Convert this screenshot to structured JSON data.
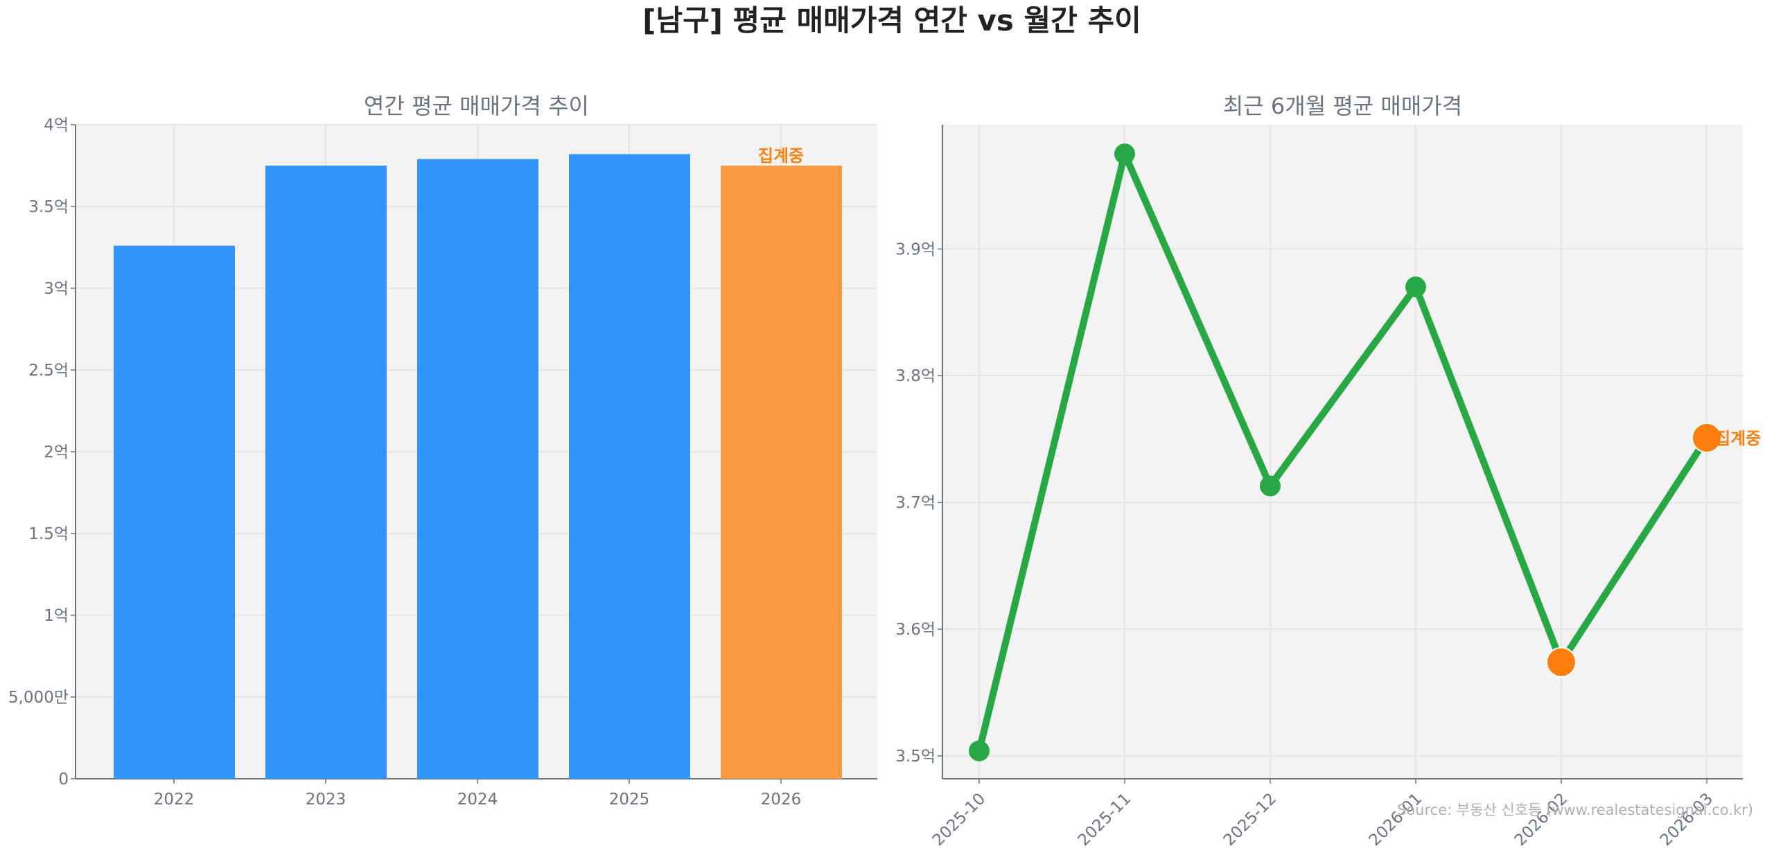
{
  "title": "[남구] 평균 매매가격 연간 vs 월간 추이",
  "source": "Source: 부동산 신호등 (www.realestatesignal.co.kr)",
  "colors": {
    "bar": "#3094fa",
    "bar_partial": "#f99a40",
    "line": "#28a745",
    "partial_marker": "#ff7f0e",
    "plot_bg": "#f3f3f3"
  },
  "chart_data": [
    {
      "type": "bar",
      "title": "연간 평균 매매가격 추이",
      "xlabel": "",
      "ylabel": "",
      "unit": "억",
      "categories": [
        "2022",
        "2023",
        "2024",
        "2025",
        "2026"
      ],
      "values": [
        3.26,
        3.75,
        3.79,
        3.82,
        3.75
      ],
      "partial": [
        false,
        false,
        false,
        false,
        true
      ],
      "annotation": "집계중",
      "ylim": [
        0,
        4
      ],
      "yticks": [
        0,
        0.5,
        1,
        1.5,
        2,
        2.5,
        3,
        3.5,
        4
      ],
      "ytick_labels": [
        "0",
        "5,000만",
        "1억",
        "1.5억",
        "2억",
        "2.5억",
        "3억",
        "3.5억",
        "4억"
      ],
      "grid": true
    },
    {
      "type": "line",
      "title": "최근 6개월 평균 매매가격",
      "xlabel": "",
      "ylabel": "",
      "unit": "억",
      "categories": [
        "2025-10",
        "2025-11",
        "2025-12",
        "2026-01",
        "2026-02",
        "2026-03"
      ],
      "values": [
        3.504,
        3.975,
        3.713,
        3.87,
        3.574,
        3.751
      ],
      "partial": [
        false,
        false,
        false,
        false,
        true,
        true
      ],
      "annotation": "집계중",
      "ylim": [
        3.482,
        3.998
      ],
      "yticks": [
        3.5,
        3.6,
        3.7,
        3.8,
        3.9
      ],
      "ytick_labels": [
        "3.5억",
        "3.6억",
        "3.7억",
        "3.8억",
        "3.9억"
      ],
      "grid": true
    }
  ]
}
